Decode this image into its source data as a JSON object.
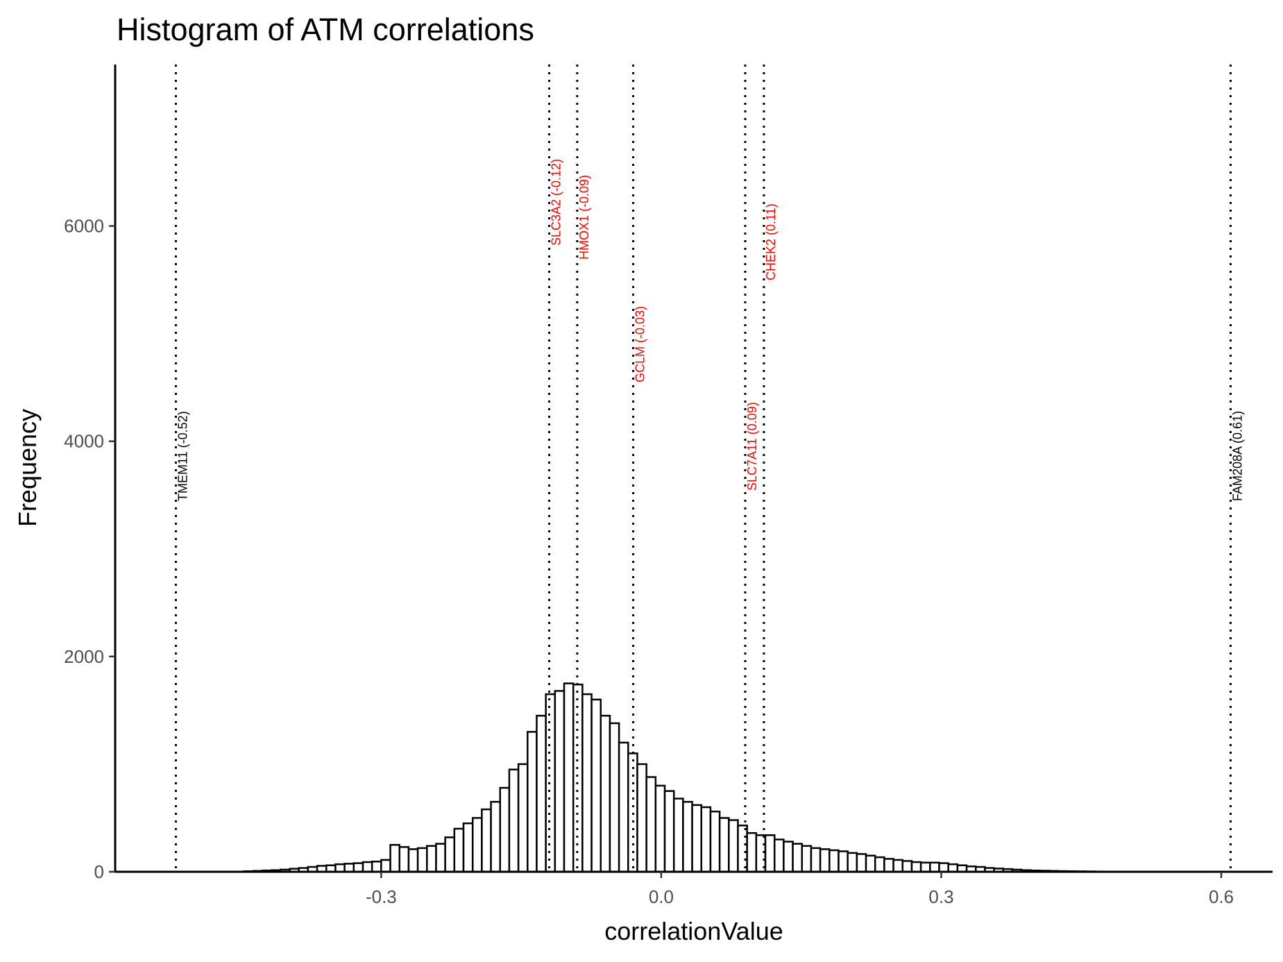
{
  "chart_data": {
    "type": "bar",
    "title": "Histogram of ATM correlations",
    "xlabel": "correlationValue",
    "ylabel": "Frequency",
    "xlim": [
      -0.585,
      0.655
    ],
    "ylim": [
      0,
      7500
    ],
    "x_ticks": [
      -0.3,
      0.0,
      0.3,
      0.6
    ],
    "x_tick_labels": [
      "-0.3",
      "0.0",
      "0.3",
      "0.6"
    ],
    "y_ticks": [
      0,
      2000,
      4000,
      6000
    ],
    "y_tick_labels": [
      "0",
      "2000",
      "4000",
      "6000"
    ],
    "grid": false,
    "bin_start": -0.545,
    "bin_width": 0.0098,
    "values": [
      0,
      0,
      0,
      0,
      0,
      0,
      0,
      0,
      0,
      0,
      5,
      8,
      12,
      15,
      20,
      28,
      35,
      45,
      55,
      60,
      70,
      75,
      80,
      90,
      95,
      110,
      250,
      230,
      210,
      220,
      240,
      260,
      320,
      400,
      450,
      500,
      580,
      650,
      780,
      950,
      1000,
      1300,
      1450,
      1650,
      1680,
      1750,
      1740,
      1650,
      1600,
      1450,
      1380,
      1200,
      1100,
      1000,
      880,
      800,
      750,
      680,
      650,
      620,
      600,
      560,
      500,
      480,
      430,
      360,
      340,
      340,
      300,
      280,
      260,
      240,
      220,
      210,
      200,
      190,
      175,
      165,
      150,
      135,
      120,
      110,
      100,
      90,
      85,
      85,
      80,
      70,
      60,
      50,
      45,
      35,
      30,
      25,
      20,
      15,
      12,
      10,
      8,
      6,
      5,
      4,
      3,
      2,
      1
    ],
    "reference_lines": [
      {
        "x": -0.52,
        "label": "TMEM11 (-0.52)",
        "color": "#000000"
      },
      {
        "x": -0.12,
        "label": "SLC3A2 (-0.12)",
        "color": "#ff0000"
      },
      {
        "x": -0.09,
        "label": "HMOX1 (-0.09)",
        "color": "#ff0000"
      },
      {
        "x": -0.03,
        "label": "GCLM (-0.03)",
        "color": "#ff0000"
      },
      {
        "x": 0.09,
        "label": "SLC7A11 (0.09)",
        "color": "#ff0000"
      },
      {
        "x": 0.11,
        "label": "CHEK2 (0.11)",
        "color": "#ff0000"
      },
      {
        "x": 0.61,
        "label": "FAM208A (0.61)",
        "color": "#000000"
      }
    ]
  }
}
